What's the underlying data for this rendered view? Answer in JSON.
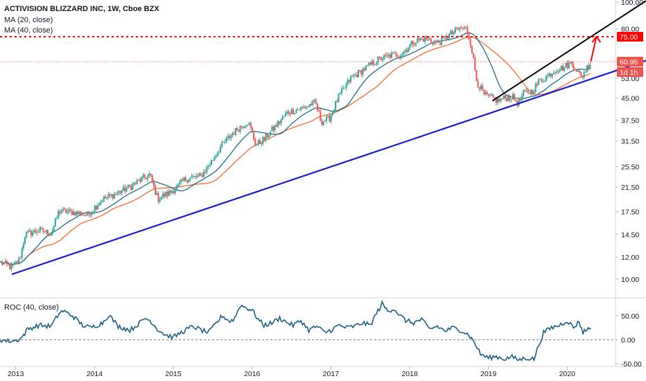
{
  "header": {
    "title": "ACTIVISION BLIZZARD INC, 1W, Cboe BZX",
    "ma20_label": "MA (20, close)",
    "ma40_label": "MA (40, close)"
  },
  "roc_label": "ROC (40, close)",
  "colors": {
    "up": "#26a69a",
    "down": "#ef5350",
    "ma20": "#1a6e87",
    "ma40": "#f26b2f",
    "support": "#1a1ad1",
    "channel": "#000000",
    "target": "#ff0000",
    "roc": "#1a5f82"
  },
  "price_badges": [
    {
      "text": "75.00",
      "color": "#ff0000"
    },
    {
      "text": "60.95",
      "color": "#ef5350"
    },
    {
      "text": "1d 1h",
      "color": "#ef5350"
    }
  ],
  "chart_data": [
    {
      "type": "candlestick",
      "title": "ACTIVISION BLIZZARD INC, 1W, Cboe BZX",
      "scale": "log",
      "ylim": [
        8.8,
        100
      ],
      "y_ticks": [
        "100.00",
        "80.00",
        "60.95",
        "53.00",
        "45.00",
        "37.50",
        "31.50",
        "25.50",
        "21.50",
        "17.50",
        "14.50",
        "12.00",
        "10.00"
      ],
      "x_ticks": [
        "2013",
        "2014",
        "2015",
        "2016",
        "2017",
        "2018",
        "2019",
        "2020"
      ],
      "x_range": [
        2012.8,
        2021.0
      ],
      "price_path": [
        [
          2012.8,
          11.5
        ],
        [
          2012.95,
          11.0
        ],
        [
          2013.05,
          11.8
        ],
        [
          2013.12,
          14.5
        ],
        [
          2013.3,
          15.0
        ],
        [
          2013.45,
          14.6
        ],
        [
          2013.55,
          17.6
        ],
        [
          2013.75,
          17.4
        ],
        [
          2013.9,
          17.0
        ],
        [
          2014.1,
          19.4
        ],
        [
          2014.25,
          20.2
        ],
        [
          2014.45,
          21.5
        ],
        [
          2014.55,
          22.5
        ],
        [
          2014.7,
          23.8
        ],
        [
          2014.8,
          19.5
        ],
        [
          2014.95,
          20.5
        ],
        [
          2015.05,
          21.5
        ],
        [
          2015.15,
          23.0
        ],
        [
          2015.35,
          23.5
        ],
        [
          2015.5,
          27.0
        ],
        [
          2015.6,
          30.0
        ],
        [
          2015.75,
          33.5
        ],
        [
          2015.85,
          35.5
        ],
        [
          2015.95,
          37.0
        ],
        [
          2016.05,
          30.5
        ],
        [
          2016.15,
          32.0
        ],
        [
          2016.35,
          37.0
        ],
        [
          2016.45,
          40.0
        ],
        [
          2016.65,
          41.5
        ],
        [
          2016.8,
          43.5
        ],
        [
          2016.88,
          37.0
        ],
        [
          2016.98,
          38.0
        ],
        [
          2017.1,
          45.5
        ],
        [
          2017.25,
          53.0
        ],
        [
          2017.45,
          58.0
        ],
        [
          2017.6,
          62.0
        ],
        [
          2017.75,
          64.0
        ],
        [
          2017.9,
          65.0
        ],
        [
          2018.05,
          72.0
        ],
        [
          2018.2,
          74.0
        ],
        [
          2018.35,
          71.0
        ],
        [
          2018.5,
          76.0
        ],
        [
          2018.65,
          80.5
        ],
        [
          2018.72,
          80.0
        ],
        [
          2018.78,
          70.0
        ],
        [
          2018.85,
          52.0
        ],
        [
          2018.95,
          46.0
        ],
        [
          2019.05,
          45.0
        ],
        [
          2019.12,
          44.0
        ],
        [
          2019.2,
          45.0
        ],
        [
          2019.3,
          45.5
        ],
        [
          2019.38,
          43.0
        ],
        [
          2019.45,
          47.0
        ],
        [
          2019.55,
          47.5
        ],
        [
          2019.65,
          52.0
        ],
        [
          2019.75,
          54.0
        ],
        [
          2019.85,
          57.0
        ],
        [
          2019.95,
          58.0
        ],
        [
          2020.05,
          60.5
        ],
        [
          2020.12,
          57.0
        ],
        [
          2020.18,
          53.5
        ],
        [
          2020.25,
          58.0
        ],
        [
          2020.3,
          61.0
        ]
      ],
      "annotations": {
        "support_line": [
          [
            2012.95,
            10.4
          ],
          [
            2021.0,
            61.5
          ]
        ],
        "channel_top": [
          [
            2019.05,
            44.0
          ],
          [
            2021.0,
            101.0
          ]
        ],
        "target_level": 75.0,
        "current_level": 60.95,
        "target_arrow": [
          [
            2020.3,
            61.0
          ],
          [
            2020.37,
            75.0
          ]
        ]
      }
    },
    {
      "type": "line",
      "title": "ROC (40, close)",
      "ylim": [
        -50,
        80
      ],
      "y_ticks": [
        "50.00",
        "0.00",
        "-50.00"
      ],
      "reference_line": 0,
      "points": [
        [
          2012.8,
          0
        ],
        [
          2012.9,
          -3
        ],
        [
          2013.0,
          -2
        ],
        [
          2013.08,
          5
        ],
        [
          2013.15,
          22
        ],
        [
          2013.3,
          30
        ],
        [
          2013.45,
          28
        ],
        [
          2013.55,
          55
        ],
        [
          2013.6,
          60
        ],
        [
          2013.72,
          50
        ],
        [
          2013.85,
          30
        ],
        [
          2013.95,
          25
        ],
        [
          2014.1,
          35
        ],
        [
          2014.18,
          52
        ],
        [
          2014.3,
          28
        ],
        [
          2014.45,
          20
        ],
        [
          2014.55,
          32
        ],
        [
          2014.65,
          45
        ],
        [
          2014.72,
          38
        ],
        [
          2014.8,
          22
        ],
        [
          2014.9,
          10
        ],
        [
          2015.0,
          5
        ],
        [
          2015.1,
          15
        ],
        [
          2015.25,
          28
        ],
        [
          2015.35,
          20
        ],
        [
          2015.45,
          15
        ],
        [
          2015.55,
          35
        ],
        [
          2015.62,
          50
        ],
        [
          2015.72,
          38
        ],
        [
          2015.78,
          45
        ],
        [
          2015.85,
          72
        ],
        [
          2015.95,
          65
        ],
        [
          2016.0,
          62
        ],
        [
          2016.08,
          42
        ],
        [
          2016.15,
          30
        ],
        [
          2016.25,
          35
        ],
        [
          2016.35,
          45
        ],
        [
          2016.42,
          38
        ],
        [
          2016.52,
          30
        ],
        [
          2016.62,
          40
        ],
        [
          2016.72,
          20
        ],
        [
          2016.82,
          28
        ],
        [
          2016.92,
          15
        ],
        [
          2017.0,
          20
        ],
        [
          2017.1,
          30
        ],
        [
          2017.2,
          25
        ],
        [
          2017.3,
          28
        ],
        [
          2017.4,
          35
        ],
        [
          2017.5,
          30
        ],
        [
          2017.58,
          55
        ],
        [
          2017.65,
          75
        ],
        [
          2017.72,
          60
        ],
        [
          2017.8,
          65
        ],
        [
          2017.88,
          50
        ],
        [
          2017.95,
          40
        ],
        [
          2018.05,
          35
        ],
        [
          2018.15,
          42
        ],
        [
          2018.25,
          22
        ],
        [
          2018.35,
          28
        ],
        [
          2018.45,
          18
        ],
        [
          2018.55,
          25
        ],
        [
          2018.65,
          20
        ],
        [
          2018.75,
          10
        ],
        [
          2018.82,
          -5
        ],
        [
          2018.9,
          -30
        ],
        [
          2019.0,
          -38
        ],
        [
          2019.1,
          -35
        ],
        [
          2019.2,
          -40
        ],
        [
          2019.3,
          -36
        ],
        [
          2019.38,
          -42
        ],
        [
          2019.48,
          -38
        ],
        [
          2019.58,
          -40
        ],
        [
          2019.62,
          -20
        ],
        [
          2019.7,
          15
        ],
        [
          2019.8,
          25
        ],
        [
          2019.9,
          30
        ],
        [
          2020.0,
          40
        ],
        [
          2020.08,
          25
        ],
        [
          2020.15,
          38
        ],
        [
          2020.2,
          15
        ],
        [
          2020.25,
          22
        ],
        [
          2020.3,
          24
        ]
      ]
    }
  ]
}
